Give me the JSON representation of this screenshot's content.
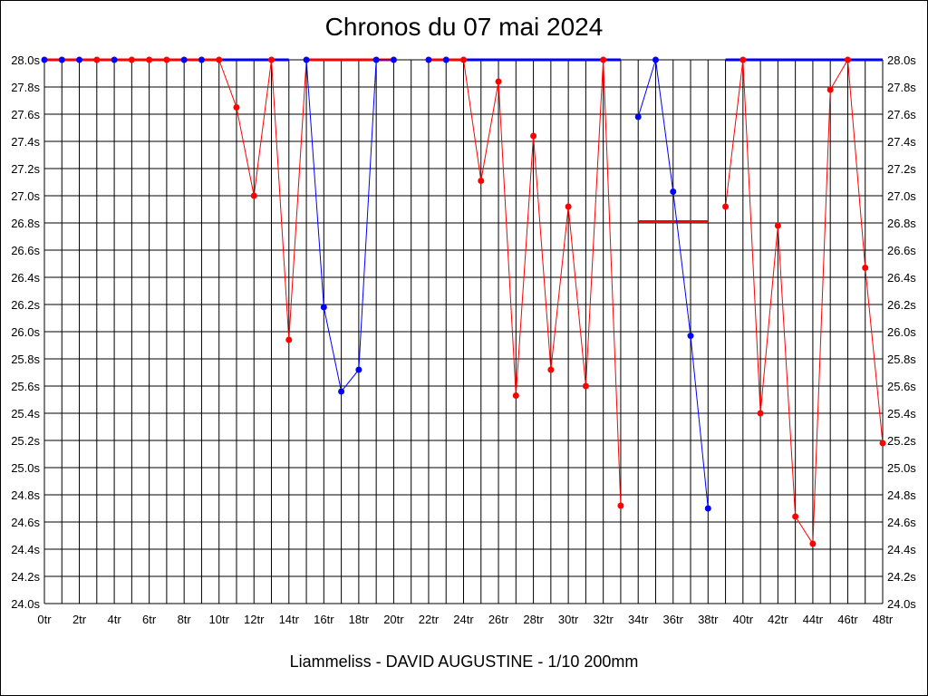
{
  "chart_data": {
    "type": "line",
    "title": "Chronos du 07 mai 2024",
    "footer": "Liammeliss - DAVID AUGUSTINE - 1/10 200mm",
    "ylim": [
      24.0,
      28.0
    ],
    "xlim": [
      0,
      48
    ],
    "grid": true,
    "y_ticks": [
      "24.0s",
      "24.2s",
      "24.4s",
      "24.6s",
      "24.8s",
      "25.0s",
      "25.2s",
      "25.4s",
      "25.6s",
      "25.8s",
      "26.0s",
      "26.2s",
      "26.4s",
      "26.6s",
      "26.8s",
      "27.0s",
      "27.2s",
      "27.4s",
      "27.6s",
      "27.8s",
      "28.0s"
    ],
    "x_ticks": [
      "0tr",
      "2tr",
      "4tr",
      "6tr",
      "8tr",
      "10tr",
      "12tr",
      "14tr",
      "16tr",
      "18tr",
      "20tr",
      "22tr",
      "24tr",
      "26tr",
      "28tr",
      "30tr",
      "32tr",
      "34tr",
      "36tr",
      "38tr",
      "40tr",
      "42tr",
      "44tr",
      "46tr",
      "48tr"
    ],
    "colors": {
      "red": "#ff0000",
      "blue": "#0000ff"
    },
    "points": [
      {
        "x": 0,
        "y": 28.0,
        "color": "blue"
      },
      {
        "x": 1,
        "y": 28.0,
        "color": "blue"
      },
      {
        "x": 2,
        "y": 28.0,
        "color": "blue"
      },
      {
        "x": 3,
        "y": 28.0,
        "color": "red"
      },
      {
        "x": 4,
        "y": 28.0,
        "color": "blue"
      },
      {
        "x": 5,
        "y": 28.0,
        "color": "red"
      },
      {
        "x": 6,
        "y": 28.0,
        "color": "red"
      },
      {
        "x": 7,
        "y": 28.0,
        "color": "red"
      },
      {
        "x": 8,
        "y": 28.0,
        "color": "blue"
      },
      {
        "x": 9,
        "y": 28.0,
        "color": "blue"
      },
      {
        "x": 10,
        "y": 28.0,
        "color": "red"
      },
      {
        "x": 11,
        "y": 27.65,
        "color": "red"
      },
      {
        "x": 12,
        "y": 27.0,
        "color": "red"
      },
      {
        "x": 13,
        "y": 28.0,
        "color": "red"
      },
      {
        "x": 14,
        "y": 25.94,
        "color": "red"
      },
      {
        "x": 15,
        "y": 28.0,
        "color": "blue"
      },
      {
        "x": 16,
        "y": 26.18,
        "color": "blue"
      },
      {
        "x": 17,
        "y": 25.56,
        "color": "blue"
      },
      {
        "x": 18,
        "y": 25.72,
        "color": "blue"
      },
      {
        "x": 19,
        "y": 28.0,
        "color": "blue"
      },
      {
        "x": 20,
        "y": 28.0,
        "color": "blue"
      },
      {
        "x": 22,
        "y": 28.0,
        "color": "blue"
      },
      {
        "x": 23,
        "y": 28.0,
        "color": "blue"
      },
      {
        "x": 24,
        "y": 28.0,
        "color": "red"
      },
      {
        "x": 25,
        "y": 27.11,
        "color": "red"
      },
      {
        "x": 26,
        "y": 27.84,
        "color": "red"
      },
      {
        "x": 27,
        "y": 25.53,
        "color": "red"
      },
      {
        "x": 28,
        "y": 27.44,
        "color": "red"
      },
      {
        "x": 29,
        "y": 25.72,
        "color": "red"
      },
      {
        "x": 30,
        "y": 26.92,
        "color": "red"
      },
      {
        "x": 31,
        "y": 25.6,
        "color": "red"
      },
      {
        "x": 32,
        "y": 28.0,
        "color": "red"
      },
      {
        "x": 33,
        "y": 24.72,
        "color": "red"
      },
      {
        "x": 34,
        "y": 27.58,
        "color": "blue"
      },
      {
        "x": 35,
        "y": 28.0,
        "color": "blue"
      },
      {
        "x": 36,
        "y": 27.03,
        "color": "blue"
      },
      {
        "x": 37,
        "y": 25.97,
        "color": "blue"
      },
      {
        "x": 38,
        "y": 24.7,
        "color": "blue"
      },
      {
        "x": 39,
        "y": 26.92,
        "color": "red"
      },
      {
        "x": 40,
        "y": 28.0,
        "color": "red"
      },
      {
        "x": 41,
        "y": 25.4,
        "color": "red"
      },
      {
        "x": 42,
        "y": 26.78,
        "color": "red"
      },
      {
        "x": 43,
        "y": 24.64,
        "color": "red"
      },
      {
        "x": 44,
        "y": 24.44,
        "color": "red"
      },
      {
        "x": 45,
        "y": 27.78,
        "color": "red"
      },
      {
        "x": 46,
        "y": 28.0,
        "color": "red"
      },
      {
        "x": 47,
        "y": 26.47,
        "color": "red"
      },
      {
        "x": 48,
        "y": 25.18,
        "color": "red"
      }
    ],
    "segments": [
      {
        "from": 0,
        "to": 10,
        "color": "red"
      },
      {
        "from": 10,
        "to": 14,
        "color": "red"
      },
      {
        "from": 14,
        "to": 15,
        "color": "red"
      },
      {
        "from": 15,
        "to": 20,
        "color": "blue"
      },
      {
        "from": 22,
        "to": 24,
        "color": "red"
      },
      {
        "from": 24,
        "to": 33,
        "color": "red"
      },
      {
        "from": 34,
        "to": 38,
        "color": "blue"
      },
      {
        "from": 39,
        "to": 48,
        "color": "red"
      }
    ],
    "flat_lines": [
      {
        "x0": 10,
        "x1": 14,
        "y": 28.0,
        "color": "blue"
      },
      {
        "x0": 15,
        "x1": 20,
        "y": 28.0,
        "color": "red"
      },
      {
        "x0": 22,
        "x1": 24,
        "y": 28.0,
        "color": "red"
      },
      {
        "x0": 24,
        "x1": 33,
        "y": 28.0,
        "color": "blue"
      },
      {
        "x0": 34,
        "x1": 38,
        "y": 26.81,
        "color": "red"
      },
      {
        "x0": 39,
        "x1": 48,
        "y": 28.0,
        "color": "blue"
      },
      {
        "x0": 0,
        "x1": 10,
        "y": 28.0,
        "color": "red"
      }
    ]
  }
}
